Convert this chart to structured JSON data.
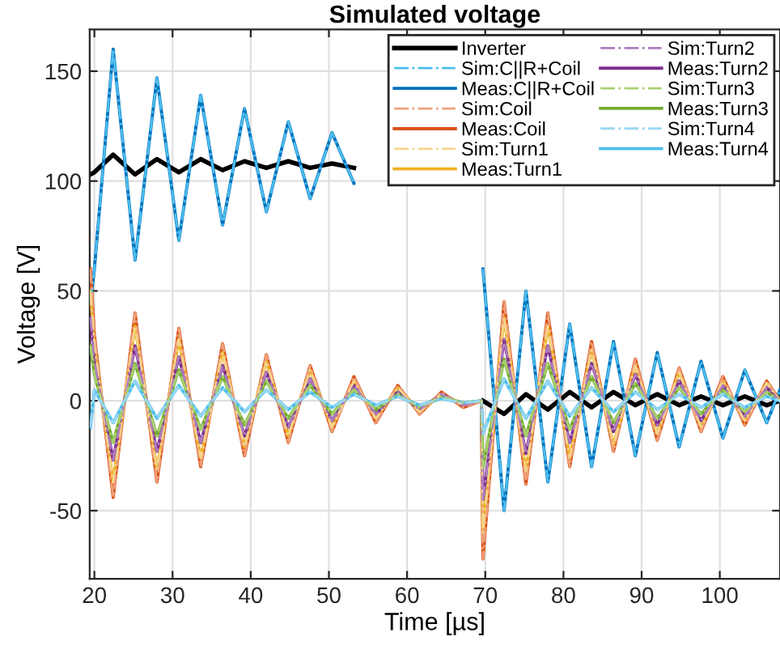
{
  "chart_data": {
    "type": "line",
    "title": "Simulated voltage",
    "xlabel": "Time [µs]",
    "ylabel": "Voltage [V]",
    "x": [
      19.5,
      20.0,
      22.4,
      25.2,
      28.0,
      30.8,
      33.6,
      36.4,
      39.2,
      42.0,
      44.8,
      47.6,
      50.4,
      53.2,
      56.0,
      58.8,
      61.6,
      64.4,
      67.2,
      69.5,
      69.7,
      72.4,
      75.2,
      78.0,
      80.8,
      83.6,
      86.4,
      89.2,
      92.0,
      94.8,
      97.6,
      100.4,
      103.2,
      106.0,
      107.7
    ],
    "xlim": [
      19.4,
      107.7
    ],
    "xticks": [
      20,
      30,
      40,
      50,
      60,
      70,
      80,
      90,
      100
    ],
    "ylim": [
      -81,
      169
    ],
    "yticks": [
      -50,
      0,
      50,
      100,
      150
    ],
    "grid": true,
    "legend": "top right",
    "series": [
      {
        "name": "Inverter",
        "color": "#000000",
        "line_style": "solid",
        "values": [
          103,
          104,
          112,
          103,
          110,
          104,
          110,
          105,
          109,
          106,
          109,
          106,
          108,
          106,
          null,
          null,
          null,
          null,
          null,
          null,
          0,
          -6,
          3,
          -4,
          4,
          -3,
          4,
          -2,
          3,
          -2,
          2,
          -2,
          2,
          -2,
          0
        ]
      },
      {
        "name": "Sim:C||R+Coil",
        "color": "#4dbeee",
        "line_style": "dashdot",
        "values": [
          45,
          60,
          160,
          64,
          147,
          73,
          139,
          80,
          133,
          86,
          127,
          92,
          122,
          99,
          null,
          null,
          null,
          null,
          null,
          null,
          60,
          -50,
          50,
          -37,
          35,
          -30,
          27,
          -25,
          22,
          -21,
          18,
          -17,
          14,
          -10,
          5
        ]
      },
      {
        "name": "Meas:C||R+Coil",
        "color": "#0072bd",
        "line_style": "solid",
        "values": [
          45,
          60,
          160,
          64,
          147,
          73,
          139,
          80,
          133,
          86,
          127,
          92,
          122,
          99,
          null,
          null,
          null,
          null,
          null,
          null,
          60,
          -50,
          50,
          -37,
          35,
          -30,
          27,
          -25,
          22,
          -21,
          18,
          -17,
          14,
          -10,
          5
        ]
      },
      {
        "name": "Sim:Coil",
        "color": "#f0a07a",
        "line_style": "dashdot",
        "values": [
          60,
          30,
          -44,
          40,
          -37,
          33,
          -30,
          26,
          -25,
          21,
          -19,
          16,
          -14,
          11,
          -10,
          7,
          -6,
          4,
          -3,
          0,
          -72,
          45,
          -38,
          40,
          -30,
          27,
          -23,
          19,
          -18,
          15,
          -14,
          11,
          -11,
          9,
          0
        ]
      },
      {
        "name": "Meas:Coil",
        "color": "#d95319",
        "line_style": "solid",
        "values": [
          60,
          30,
          -44,
          40,
          -37,
          33,
          -30,
          26,
          -25,
          21,
          -19,
          16,
          -14,
          11,
          -10,
          7,
          -6,
          4,
          -3,
          0,
          -72,
          45,
          -38,
          40,
          -30,
          27,
          -23,
          19,
          -18,
          15,
          -14,
          11,
          -11,
          9,
          0
        ]
      },
      {
        "name": "Sim:Turn1",
        "color": "#f5d48c",
        "line_style": "dashdot",
        "values": [
          50,
          25,
          -37,
          34,
          -31,
          28,
          -26,
          22,
          -21,
          18,
          -16,
          14,
          -12,
          9,
          -8,
          6,
          -5,
          3,
          -2,
          0,
          -60,
          38,
          -32,
          34,
          -26,
          23,
          -20,
          16,
          -15,
          13,
          -12,
          9,
          -9,
          8,
          0
        ]
      },
      {
        "name": "Meas:Turn1",
        "color": "#edb120",
        "line_style": "solid",
        "values": [
          50,
          25,
          -37,
          34,
          -31,
          28,
          -26,
          22,
          -21,
          18,
          -16,
          14,
          -12,
          9,
          -8,
          6,
          -5,
          3,
          -2,
          0,
          -60,
          38,
          -32,
          34,
          -26,
          23,
          -20,
          16,
          -15,
          13,
          -12,
          9,
          -9,
          8,
          0
        ]
      },
      {
        "name": "Sim:Turn2",
        "color": "#b07cc0",
        "line_style": "dashdot",
        "values": [
          38,
          18,
          -27,
          25,
          -23,
          20,
          -19,
          16,
          -16,
          13,
          -12,
          10,
          -9,
          7,
          -6,
          4,
          -4,
          3,
          -2,
          0,
          -45,
          28,
          -24,
          25,
          -19,
          17,
          -14,
          12,
          -11,
          9,
          -9,
          7,
          -7,
          6,
          0
        ]
      },
      {
        "name": "Meas:Turn2",
        "color": "#7e2f8e",
        "line_style": "solid",
        "values": [
          38,
          18,
          -27,
          25,
          -23,
          20,
          -19,
          16,
          -16,
          13,
          -12,
          10,
          -9,
          7,
          -6,
          4,
          -4,
          3,
          -2,
          0,
          -45,
          28,
          -24,
          25,
          -19,
          17,
          -14,
          12,
          -11,
          9,
          -9,
          7,
          -7,
          6,
          0
        ]
      },
      {
        "name": "Sim:Turn3",
        "color": "#a8d070",
        "line_style": "dashdot",
        "values": [
          25,
          12,
          -19,
          17,
          -16,
          14,
          -13,
          11,
          -11,
          9,
          -8,
          7,
          -6,
          5,
          -4,
          3,
          -3,
          2,
          -1,
          0,
          -30,
          19,
          -16,
          17,
          -13,
          11,
          -10,
          8,
          -8,
          6,
          -6,
          5,
          -5,
          4,
          0
        ]
      },
      {
        "name": "Meas:Turn3",
        "color": "#77ac30",
        "line_style": "solid",
        "values": [
          25,
          12,
          -19,
          17,
          -16,
          14,
          -13,
          11,
          -11,
          9,
          -8,
          7,
          -6,
          5,
          -4,
          3,
          -3,
          2,
          -1,
          0,
          -30,
          19,
          -16,
          17,
          -13,
          11,
          -10,
          8,
          -8,
          6,
          -6,
          5,
          -5,
          4,
          0
        ]
      },
      {
        "name": "Sim:Turn4",
        "color": "#9ad8f2",
        "line_style": "dashdot",
        "values": [
          -12,
          5,
          -10,
          9,
          -8,
          7,
          -7,
          6,
          -5,
          5,
          -4,
          4,
          -3,
          3,
          -2,
          2,
          -2,
          1,
          -1,
          0,
          -15,
          10,
          -8,
          9,
          -7,
          6,
          -5,
          4,
          -4,
          3,
          -3,
          3,
          -3,
          2,
          0
        ]
      },
      {
        "name": "Meas:Turn4",
        "color": "#4dbeee",
        "line_style": "solid",
        "values": [
          -12,
          5,
          -10,
          9,
          -8,
          7,
          -7,
          6,
          -5,
          5,
          -4,
          4,
          -3,
          3,
          -2,
          2,
          -2,
          1,
          -1,
          0,
          -15,
          10,
          -8,
          9,
          -7,
          6,
          -5,
          4,
          -4,
          3,
          -3,
          3,
          -3,
          2,
          0
        ]
      }
    ]
  }
}
